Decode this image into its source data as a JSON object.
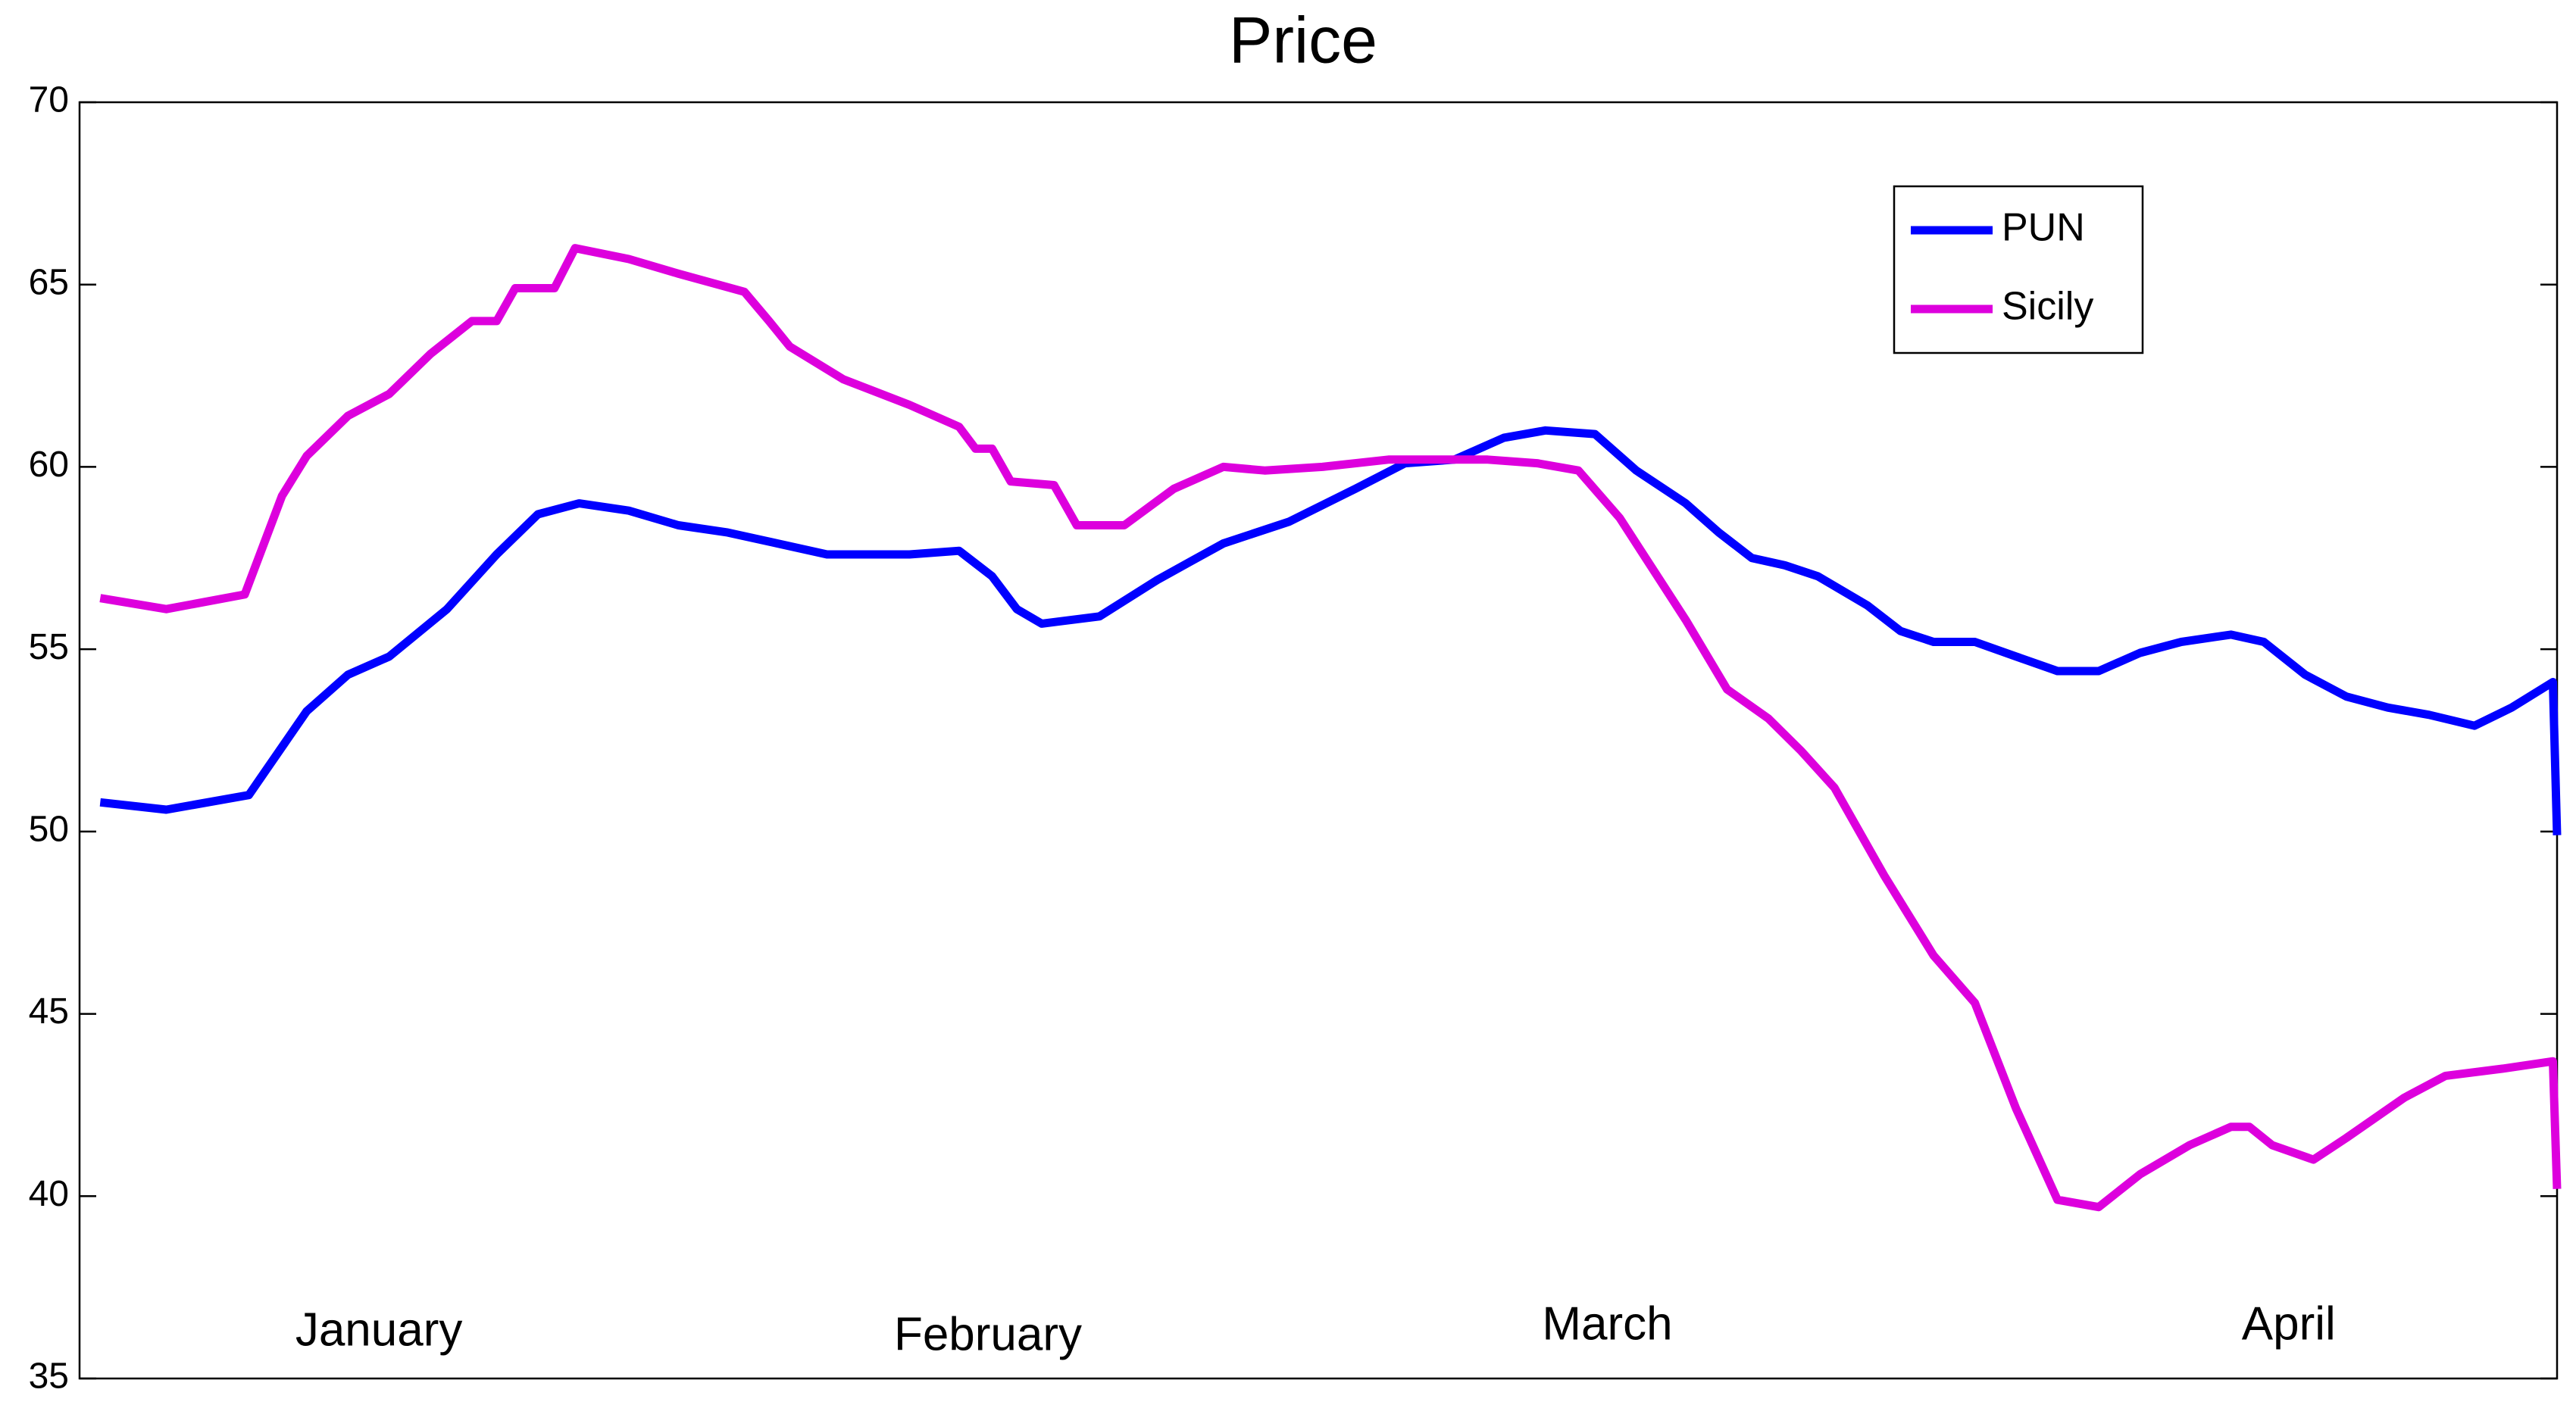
{
  "chart_data": {
    "type": "line",
    "title": "Price",
    "annotations": [
      "January",
      "February",
      "March",
      "April"
    ],
    "xlim": [
      0,
      120
    ],
    "ylim": [
      35,
      70
    ],
    "yticks": [
      35,
      40,
      45,
      50,
      55,
      60,
      65,
      70
    ],
    "grid": false,
    "legend": "upper right",
    "series": [
      {
        "name": "PUN",
        "color": "#0000ff",
        "x": [
          1.0,
          4.2,
          8.2,
          11.0,
          13.0,
          15.0,
          17.8,
          20.2,
          22.2,
          24.2,
          26.6,
          29.0,
          31.4,
          33.8,
          36.2,
          40.2,
          42.6,
          44.2,
          45.4,
          46.6,
          49.4,
          52.2,
          53.8,
          55.4,
          58.6,
          61.8,
          64.2,
          66.6,
          69.0,
          71.0,
          73.4,
          75.4,
          77.8,
          79.4,
          81.0,
          82.6,
          84.2,
          86.6,
          88.2,
          89.8,
          91.8,
          93.8,
          95.8,
          97.8,
          99.8,
          101.8,
          104.2,
          105.8,
          107.8,
          109.8,
          111.8,
          113.8,
          116.0,
          117.8,
          119.8,
          120.0
        ],
        "values": [
          50.8,
          50.6,
          51.0,
          53.3,
          54.3,
          54.8,
          56.1,
          57.6,
          58.7,
          59.0,
          58.8,
          58.4,
          58.2,
          57.9,
          57.6,
          57.6,
          57.7,
          57.0,
          56.1,
          55.7,
          55.9,
          56.9,
          57.4,
          57.9,
          58.5,
          59.4,
          60.1,
          60.2,
          60.8,
          61.0,
          60.9,
          59.9,
          59.0,
          58.2,
          57.5,
          57.3,
          57.0,
          56.2,
          55.5,
          55.2,
          55.2,
          54.8,
          54.4,
          54.4,
          54.9,
          55.2,
          55.4,
          55.2,
          54.3,
          53.7,
          53.4,
          53.2,
          52.9,
          53.4,
          54.1,
          49.9
        ]
      },
      {
        "name": "Sicily",
        "color": "#dd00dd",
        "x": [
          1.0,
          4.2,
          8.0,
          9.8,
          11.0,
          13.0,
          15.0,
          17.0,
          19.0,
          20.2,
          21.1,
          23.0,
          24.0,
          26.6,
          29.0,
          32.2,
          33.4,
          34.4,
          37.0,
          40.2,
          42.6,
          43.4,
          44.2,
          45.1,
          47.2,
          48.3,
          50.6,
          53.0,
          55.4,
          57.4,
          60.2,
          63.4,
          65.8,
          68.2,
          70.6,
          72.6,
          74.6,
          77.8,
          79.8,
          81.8,
          83.4,
          85.0,
          87.4,
          89.8,
          91.8,
          93.8,
          95.8,
          97.8,
          99.8,
          102.2,
          104.2,
          105.1,
          106.2,
          108.2,
          109.8,
          112.6,
          114.6,
          117.4,
          119.8,
          120.0
        ],
        "values": [
          56.4,
          56.1,
          56.5,
          59.2,
          60.3,
          61.4,
          62.0,
          63.1,
          64.0,
          64.0,
          64.9,
          64.9,
          66.0,
          65.7,
          65.3,
          64.8,
          64.0,
          63.3,
          62.4,
          61.7,
          61.1,
          60.5,
          60.5,
          59.6,
          59.5,
          58.4,
          58.4,
          59.4,
          60.0,
          59.9,
          60.0,
          60.2,
          60.2,
          60.2,
          60.1,
          59.9,
          58.6,
          55.8,
          53.9,
          53.1,
          52.2,
          51.2,
          48.8,
          46.6,
          45.3,
          42.4,
          39.9,
          39.7,
          40.6,
          41.4,
          41.9,
          41.9,
          41.4,
          41.0,
          41.6,
          42.7,
          43.3,
          43.5,
          43.7,
          40.2
        ]
      }
    ]
  }
}
